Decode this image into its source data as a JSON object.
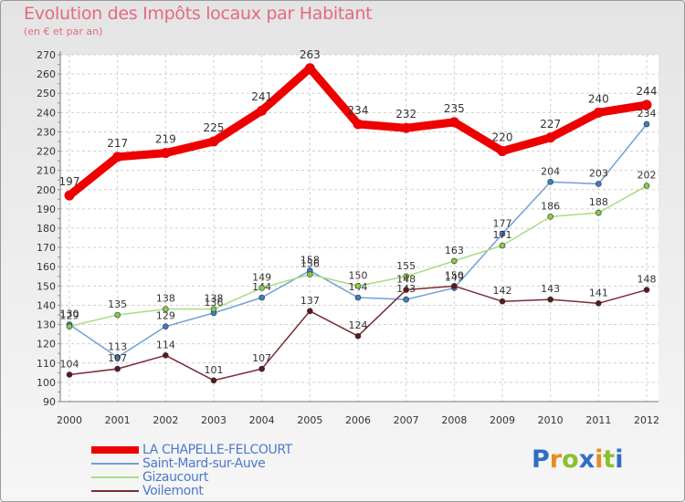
{
  "title": "Evolution des Impôts locaux par Habitant",
  "subtitle": "(en € et par an)",
  "logo": {
    "text": "Proxiti",
    "letters": [
      {
        "ch": "P",
        "color": "#2f6fc3"
      },
      {
        "ch": "r",
        "color": "#e98b1e"
      },
      {
        "ch": "o",
        "color": "#8cbf30"
      },
      {
        "ch": "x",
        "color": "#2f6fc3"
      },
      {
        "ch": "i",
        "color": "#e98b1e"
      },
      {
        "ch": "t",
        "color": "#8cbf30"
      },
      {
        "ch": "i",
        "color": "#2f6fc3"
      }
    ]
  },
  "chart_data": {
    "type": "line",
    "title": "Evolution des Impôts locaux par Habitant",
    "subtitle": "(en € et par an)",
    "xlabel": "",
    "ylabel": "",
    "ylim": [
      90,
      270
    ],
    "ytick_step": 10,
    "grid": true,
    "legend_position": "bottom-left",
    "x": [
      "2000",
      "2001",
      "2002",
      "2003",
      "2004",
      "2005",
      "2006",
      "2007",
      "2008",
      "2009",
      "2010",
      "2011",
      "2012"
    ],
    "yticks": [
      "90",
      "100",
      "110",
      "120",
      "130",
      "140",
      "150",
      "160",
      "170",
      "180",
      "190",
      "200",
      "210",
      "220",
      "230",
      "240",
      "250",
      "260",
      "270"
    ],
    "series": [
      {
        "name": "LA CHAPELLE-FELCOURT",
        "color": "#ee0000",
        "marker": "#ee0000",
        "values": [
          197,
          217,
          219,
          225,
          241,
          263,
          234,
          232,
          235,
          220,
          227,
          240,
          244
        ]
      },
      {
        "name": "Saint-Mard-sur-Auve",
        "color": "#6fa0d6",
        "marker": "#3d7cc9",
        "values": [
          130,
          113,
          129,
          136,
          144,
          158,
          144,
          143,
          149,
          177,
          204,
          203,
          234
        ]
      },
      {
        "name": "Gizaucourt",
        "color": "#a9dc82",
        "marker": "#84cc44",
        "values": [
          129,
          135,
          138,
          138,
          149,
          156,
          150,
          155,
          163,
          171,
          186,
          188,
          202
        ]
      },
      {
        "name": "Voilemont",
        "color": "#7b2a33",
        "marker": "#5c1820",
        "values": [
          104,
          107,
          114,
          101,
          107,
          137,
          124,
          148,
          150,
          142,
          143,
          141,
          148
        ]
      }
    ]
  }
}
